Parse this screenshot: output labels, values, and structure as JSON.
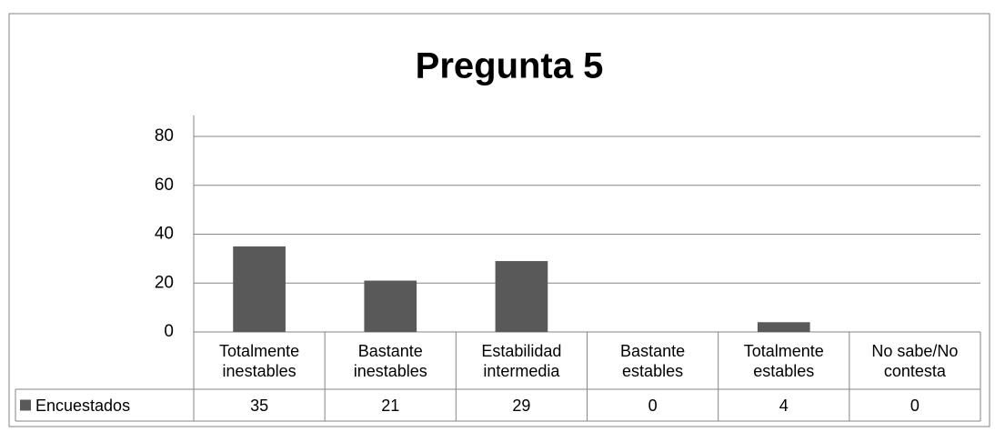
{
  "chart_data": {
    "type": "bar",
    "title": "Pregunta 5",
    "categories": [
      "Totalmente inestables",
      "Bastante inestables",
      "Estabilidad intermedia",
      "Bastante estables",
      "Totalmente estables",
      "No sabe/No contesta"
    ],
    "series": [
      {
        "name": "Encuestados",
        "color": "#595959",
        "values": [
          35,
          21,
          29,
          0,
          4,
          0
        ]
      }
    ],
    "ylim": [
      0,
      80
    ],
    "yticks": [
      0,
      20,
      40,
      60,
      80
    ],
    "grid": true,
    "legend": "table"
  }
}
